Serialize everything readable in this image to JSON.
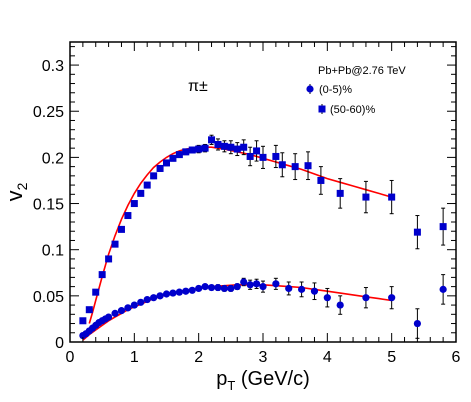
{
  "chart_data": {
    "type": "scatter",
    "title": "",
    "xlabel_main": "p",
    "xlabel_sub": "T",
    "xlabel_unit": " (GeV/c)",
    "ylabel_main": "v",
    "ylabel_sub": "2",
    "xlim": [
      0,
      6
    ],
    "ylim": [
      0,
      0.325
    ],
    "x_major_ticks": [
      0,
      1,
      2,
      3,
      4,
      5,
      6
    ],
    "x_tick_labels": [
      "0",
      "1",
      "2",
      "3",
      "4",
      "5",
      "6"
    ],
    "y_major_ticks": [
      0,
      0.05,
      0.1,
      0.15,
      0.2,
      0.25,
      0.3
    ],
    "y_tick_labels": [
      "0",
      "0.05",
      "0.1",
      "0.15",
      "0.2",
      "0.25",
      "0.3"
    ],
    "particle_label": "π±",
    "system_label": "Pb+Pb@2.76 TeV",
    "colors": {
      "markers": "#0000cc",
      "curve": "#ff0000",
      "errorbar": "#000000"
    },
    "series": [
      {
        "name": "(0-5)%",
        "marker": "circle",
        "points": [
          [
            0.2,
            0.007,
            0.002
          ],
          [
            0.25,
            0.009,
            0.002
          ],
          [
            0.3,
            0.012,
            0.002
          ],
          [
            0.35,
            0.015,
            0.002
          ],
          [
            0.4,
            0.018,
            0.002
          ],
          [
            0.45,
            0.021,
            0.002
          ],
          [
            0.5,
            0.023,
            0.002
          ],
          [
            0.55,
            0.025,
            0.002
          ],
          [
            0.6,
            0.027,
            0.002
          ],
          [
            0.7,
            0.031,
            0.002
          ],
          [
            0.8,
            0.034,
            0.002
          ],
          [
            0.9,
            0.037,
            0.002
          ],
          [
            1.0,
            0.04,
            0.002
          ],
          [
            1.1,
            0.043,
            0.002
          ],
          [
            1.2,
            0.046,
            0.002
          ],
          [
            1.3,
            0.048,
            0.002
          ],
          [
            1.4,
            0.05,
            0.002
          ],
          [
            1.5,
            0.052,
            0.002
          ],
          [
            1.6,
            0.053,
            0.002
          ],
          [
            1.7,
            0.054,
            0.002
          ],
          [
            1.8,
            0.055,
            0.002
          ],
          [
            1.9,
            0.056,
            0.002
          ],
          [
            2.0,
            0.058,
            0.002
          ],
          [
            2.1,
            0.06,
            0.002
          ],
          [
            2.2,
            0.059,
            0.002
          ],
          [
            2.3,
            0.059,
            0.003
          ],
          [
            2.4,
            0.058,
            0.003
          ],
          [
            2.5,
            0.058,
            0.003
          ],
          [
            2.6,
            0.06,
            0.003
          ],
          [
            2.7,
            0.065,
            0.004
          ],
          [
            2.8,
            0.062,
            0.005
          ],
          [
            2.9,
            0.063,
            0.005
          ],
          [
            3.0,
            0.06,
            0.006
          ],
          [
            3.2,
            0.063,
            0.006
          ],
          [
            3.4,
            0.058,
            0.007
          ],
          [
            3.6,
            0.057,
            0.008
          ],
          [
            3.8,
            0.055,
            0.009
          ],
          [
            4.0,
            0.048,
            0.01
          ],
          [
            4.2,
            0.04,
            0.01
          ],
          [
            4.6,
            0.048,
            0.011
          ],
          [
            5.0,
            0.048,
            0.012
          ],
          [
            5.4,
            0.02,
            0.016
          ],
          [
            5.8,
            0.057,
            0.016
          ]
        ]
      },
      {
        "name": "(50-60)%",
        "marker": "square",
        "points": [
          [
            0.2,
            0.023,
            0.002
          ],
          [
            0.3,
            0.035,
            0.002
          ],
          [
            0.4,
            0.054,
            0.002
          ],
          [
            0.5,
            0.073,
            0.002
          ],
          [
            0.6,
            0.09,
            0.002
          ],
          [
            0.7,
            0.106,
            0.002
          ],
          [
            0.8,
            0.122,
            0.002
          ],
          [
            0.9,
            0.137,
            0.002
          ],
          [
            1.0,
            0.15,
            0.002
          ],
          [
            1.1,
            0.161,
            0.002
          ],
          [
            1.2,
            0.17,
            0.002
          ],
          [
            1.3,
            0.18,
            0.003
          ],
          [
            1.4,
            0.188,
            0.003
          ],
          [
            1.5,
            0.194,
            0.003
          ],
          [
            1.6,
            0.199,
            0.003
          ],
          [
            1.7,
            0.203,
            0.003
          ],
          [
            1.8,
            0.206,
            0.003
          ],
          [
            1.9,
            0.208,
            0.003
          ],
          [
            2.0,
            0.209,
            0.004
          ],
          [
            2.1,
            0.21,
            0.004
          ],
          [
            2.2,
            0.219,
            0.005
          ],
          [
            2.3,
            0.214,
            0.006
          ],
          [
            2.4,
            0.212,
            0.006
          ],
          [
            2.5,
            0.211,
            0.007
          ],
          [
            2.6,
            0.209,
            0.007
          ],
          [
            2.7,
            0.211,
            0.008
          ],
          [
            2.8,
            0.201,
            0.01
          ],
          [
            2.9,
            0.207,
            0.011
          ],
          [
            3.0,
            0.2,
            0.012
          ],
          [
            3.2,
            0.201,
            0.012
          ],
          [
            3.3,
            0.192,
            0.013
          ],
          [
            3.5,
            0.19,
            0.014
          ],
          [
            3.7,
            0.191,
            0.015
          ],
          [
            3.9,
            0.175,
            0.015
          ],
          [
            4.2,
            0.161,
            0.016
          ],
          [
            4.6,
            0.157,
            0.017
          ],
          [
            5.0,
            0.157,
            0.018
          ],
          [
            5.4,
            0.119,
            0.018
          ],
          [
            5.8,
            0.125,
            0.02
          ]
        ]
      }
    ],
    "fits": [
      {
        "series": "(50-60)%",
        "points": [
          [
            0.3,
            0.02
          ],
          [
            0.35,
            0.032
          ],
          [
            0.4,
            0.045
          ],
          [
            0.5,
            0.071
          ],
          [
            0.6,
            0.095
          ],
          [
            0.7,
            0.115
          ],
          [
            0.8,
            0.133
          ],
          [
            0.9,
            0.148
          ],
          [
            1.0,
            0.161
          ],
          [
            1.1,
            0.172
          ],
          [
            1.2,
            0.181
          ],
          [
            1.3,
            0.189
          ],
          [
            1.4,
            0.195
          ],
          [
            1.5,
            0.2
          ],
          [
            1.6,
            0.204
          ],
          [
            1.7,
            0.207
          ],
          [
            1.8,
            0.209
          ],
          [
            1.9,
            0.21
          ],
          [
            2.0,
            0.211
          ],
          [
            2.2,
            0.211
          ],
          [
            2.4,
            0.209
          ],
          [
            2.6,
            0.206
          ],
          [
            2.8,
            0.203
          ],
          [
            3.0,
            0.199
          ],
          [
            3.2,
            0.195
          ],
          [
            3.4,
            0.191
          ],
          [
            3.6,
            0.187
          ],
          [
            3.8,
            0.182
          ],
          [
            4.0,
            0.177
          ],
          [
            4.2,
            0.173
          ],
          [
            4.4,
            0.169
          ],
          [
            4.6,
            0.165
          ],
          [
            4.8,
            0.161
          ],
          [
            5.0,
            0.157
          ]
        ]
      },
      {
        "series": "(0-5)%",
        "points": [
          [
            0.2,
            0.002
          ],
          [
            0.3,
            0.008
          ],
          [
            0.4,
            0.013
          ],
          [
            0.5,
            0.018
          ],
          [
            0.6,
            0.023
          ],
          [
            0.7,
            0.027
          ],
          [
            0.8,
            0.031
          ],
          [
            0.9,
            0.035
          ],
          [
            1.0,
            0.038
          ],
          [
            1.1,
            0.041
          ],
          [
            1.2,
            0.044
          ],
          [
            1.3,
            0.047
          ],
          [
            1.4,
            0.049
          ],
          [
            1.5,
            0.051
          ],
          [
            1.6,
            0.053
          ],
          [
            1.7,
            0.055
          ],
          [
            1.8,
            0.056
          ],
          [
            1.9,
            0.057
          ],
          [
            2.0,
            0.058
          ],
          [
            2.2,
            0.06
          ],
          [
            2.4,
            0.061
          ],
          [
            2.6,
            0.062
          ],
          [
            2.8,
            0.062
          ],
          [
            3.0,
            0.062
          ],
          [
            3.2,
            0.061
          ],
          [
            3.4,
            0.06
          ],
          [
            3.6,
            0.059
          ],
          [
            3.8,
            0.057
          ],
          [
            4.0,
            0.055
          ],
          [
            4.2,
            0.053
          ],
          [
            4.4,
            0.051
          ],
          [
            4.6,
            0.049
          ],
          [
            4.8,
            0.047
          ],
          [
            5.0,
            0.045
          ]
        ]
      }
    ]
  }
}
